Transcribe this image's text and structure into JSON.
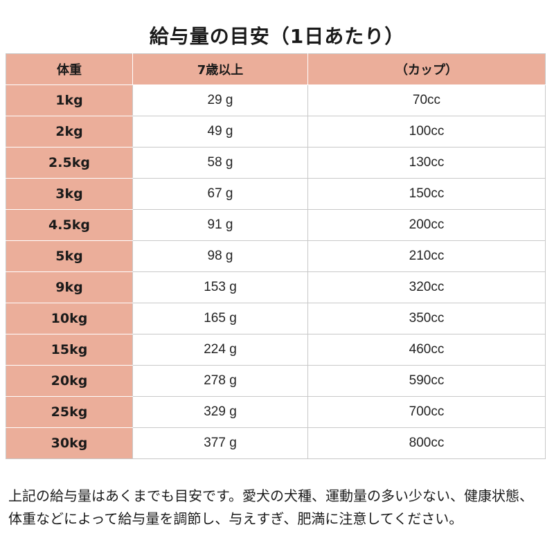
{
  "title": "給与量の目安（1日あたり）",
  "table": {
    "headers": [
      "体重",
      "7歳以上",
      "（カップ）"
    ],
    "rows": [
      {
        "weight": "1kg",
        "amount": "29 g",
        "cup": "70cc"
      },
      {
        "weight": "2kg",
        "amount": "49 g",
        "cup": "100cc"
      },
      {
        "weight": "2.5kg",
        "amount": "58 g",
        "cup": "130cc"
      },
      {
        "weight": "3kg",
        "amount": "67 g",
        "cup": "150cc"
      },
      {
        "weight": "4.5kg",
        "amount": "91 g",
        "cup": "200cc"
      },
      {
        "weight": "5kg",
        "amount": "98 g",
        "cup": "210cc"
      },
      {
        "weight": "9kg",
        "amount": "153 g",
        "cup": "320cc"
      },
      {
        "weight": "10kg",
        "amount": "165 g",
        "cup": "350cc"
      },
      {
        "weight": "15kg",
        "amount": "224 g",
        "cup": "460cc"
      },
      {
        "weight": "20kg",
        "amount": "278 g",
        "cup": "590cc"
      },
      {
        "weight": "25kg",
        "amount": "329 g",
        "cup": "700cc"
      },
      {
        "weight": "30kg",
        "amount": "377 g",
        "cup": "800cc"
      }
    ]
  },
  "note": "上記の給与量はあくまでも目安です。愛犬の犬種、運動量の多い少ない、健康状態、体重などによって給与量を調節し、与えすぎ、肥満に注意してください。",
  "colors": {
    "header_fill": "#ebae9a",
    "grid_line": "#c8c8c8"
  }
}
